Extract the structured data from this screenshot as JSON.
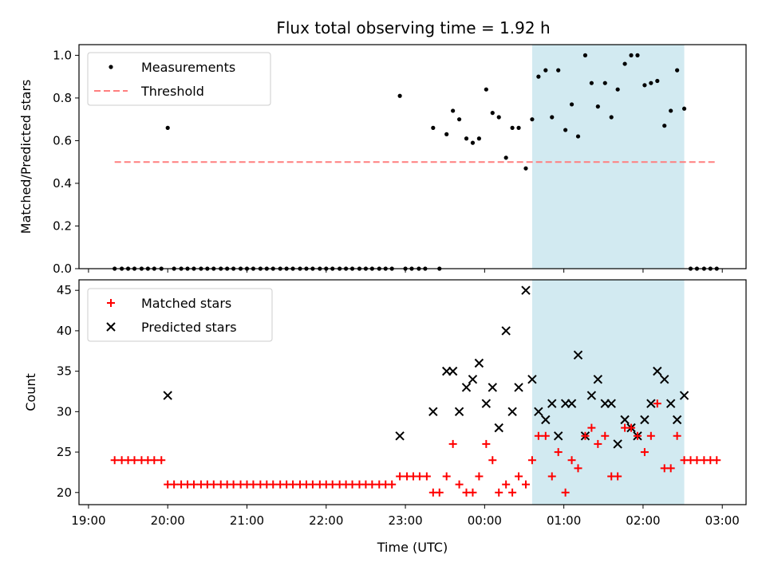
{
  "chart_data": {
    "title": "Flux total observing time = 1.92 h",
    "xlabel": "Time (UTC)",
    "x_unit": "hours (UTC, continuing past midnight)",
    "xlim": [
      18.88,
      27.3
    ],
    "xticks": [
      {
        "v": 19,
        "label": "19:00"
      },
      {
        "v": 20,
        "label": "20:00"
      },
      {
        "v": 21,
        "label": "21:00"
      },
      {
        "v": 22,
        "label": "22:00"
      },
      {
        "v": 23,
        "label": "23:00"
      },
      {
        "v": 24,
        "label": "00:00"
      },
      {
        "v": 25,
        "label": "01:00"
      },
      {
        "v": 26,
        "label": "02:00"
      },
      {
        "v": 27,
        "label": "03:00"
      }
    ],
    "highlight_span": {
      "x0": 24.6,
      "x1": 26.52,
      "color": "#add8e6"
    },
    "top": {
      "type": "scatter",
      "ylabel": "Matched/Predicted stars",
      "ylim": [
        0,
        1.05
      ],
      "yticks": [
        {
          "v": 0,
          "label": "0.0"
        },
        {
          "v": 0.2,
          "label": "0.2"
        },
        {
          "v": 0.4,
          "label": "0.4"
        },
        {
          "v": 0.6,
          "label": "0.6"
        },
        {
          "v": 0.8,
          "label": "0.8"
        },
        {
          "v": 1.0,
          "label": "1.0"
        }
      ],
      "legend": {
        "placement": "upper-left",
        "measurements_label": "Measurements",
        "threshold_label": "Threshold"
      },
      "threshold": {
        "value": 0.5,
        "x0": 19.33,
        "x1": 26.92,
        "color": "#ff7f7f"
      },
      "measurements": {
        "color": "#000000",
        "points": [
          [
            19.33,
            0
          ],
          [
            19.42,
            0
          ],
          [
            19.5,
            0
          ],
          [
            19.58,
            0
          ],
          [
            19.67,
            0
          ],
          [
            19.75,
            0
          ],
          [
            19.83,
            0
          ],
          [
            19.92,
            0
          ],
          [
            20.0,
            0.66
          ],
          [
            20.08,
            0
          ],
          [
            20.17,
            0
          ],
          [
            20.25,
            0
          ],
          [
            20.33,
            0
          ],
          [
            20.42,
            0
          ],
          [
            20.5,
            0
          ],
          [
            20.58,
            0
          ],
          [
            20.67,
            0
          ],
          [
            20.75,
            0
          ],
          [
            20.83,
            0
          ],
          [
            20.92,
            0
          ],
          [
            21.0,
            0
          ],
          [
            21.08,
            0
          ],
          [
            21.17,
            0
          ],
          [
            21.25,
            0
          ],
          [
            21.33,
            0
          ],
          [
            21.42,
            0
          ],
          [
            21.5,
            0
          ],
          [
            21.58,
            0
          ],
          [
            21.67,
            0
          ],
          [
            21.75,
            0
          ],
          [
            21.83,
            0
          ],
          [
            21.92,
            0
          ],
          [
            22.0,
            0
          ],
          [
            22.08,
            0
          ],
          [
            22.17,
            0
          ],
          [
            22.25,
            0
          ],
          [
            22.33,
            0
          ],
          [
            22.42,
            0
          ],
          [
            22.5,
            0
          ],
          [
            22.58,
            0
          ],
          [
            22.67,
            0
          ],
          [
            22.75,
            0
          ],
          [
            22.83,
            0
          ],
          [
            22.93,
            0.81
          ],
          [
            23.0,
            0
          ],
          [
            23.08,
            0
          ],
          [
            23.17,
            0
          ],
          [
            23.25,
            0
          ],
          [
            23.35,
            0.66
          ],
          [
            23.43,
            0
          ],
          [
            23.52,
            0.63
          ],
          [
            23.6,
            0.74
          ],
          [
            23.68,
            0.7
          ],
          [
            23.77,
            0.61
          ],
          [
            23.85,
            0.59
          ],
          [
            23.93,
            0.61
          ],
          [
            24.02,
            0.84
          ],
          [
            24.1,
            0.73
          ],
          [
            24.18,
            0.71
          ],
          [
            24.27,
            0.52
          ],
          [
            24.35,
            0.66
          ],
          [
            24.43,
            0.66
          ],
          [
            24.52,
            0.47
          ],
          [
            24.6,
            0.7
          ],
          [
            24.68,
            0.9
          ],
          [
            24.77,
            0.93
          ],
          [
            24.85,
            0.71
          ],
          [
            24.93,
            0.93
          ],
          [
            25.02,
            0.65
          ],
          [
            25.1,
            0.77
          ],
          [
            25.18,
            0.62
          ],
          [
            25.27,
            1.0
          ],
          [
            25.35,
            0.87
          ],
          [
            25.43,
            0.76
          ],
          [
            25.52,
            0.87
          ],
          [
            25.6,
            0.71
          ],
          [
            25.68,
            0.84
          ],
          [
            25.77,
            0.96
          ],
          [
            25.85,
            1.0
          ],
          [
            25.93,
            1.0
          ],
          [
            26.02,
            0.86
          ],
          [
            26.1,
            0.87
          ],
          [
            26.18,
            0.88
          ],
          [
            26.27,
            0.67
          ],
          [
            26.35,
            0.74
          ],
          [
            26.43,
            0.93
          ],
          [
            26.52,
            0.75
          ],
          [
            26.6,
            0
          ],
          [
            26.68,
            0
          ],
          [
            26.77,
            0
          ],
          [
            26.85,
            0
          ],
          [
            26.93,
            0
          ]
        ]
      }
    },
    "bottom": {
      "type": "scatter",
      "ylabel": "Count",
      "ylim": [
        18.5,
        46.3
      ],
      "yticks": [
        {
          "v": 20,
          "label": "20"
        },
        {
          "v": 25,
          "label": "25"
        },
        {
          "v": 30,
          "label": "30"
        },
        {
          "v": 35,
          "label": "35"
        },
        {
          "v": 40,
          "label": "40"
        },
        {
          "v": 45,
          "label": "45"
        }
      ],
      "legend": {
        "placement": "upper-left"
      },
      "series": [
        {
          "name": "Matched stars",
          "marker": "+",
          "color": "#ff0000",
          "points": [
            [
              19.33,
              24
            ],
            [
              19.42,
              24
            ],
            [
              19.5,
              24
            ],
            [
              19.58,
              24
            ],
            [
              19.67,
              24
            ],
            [
              19.75,
              24
            ],
            [
              19.83,
              24
            ],
            [
              19.92,
              24
            ],
            [
              20.0,
              21
            ],
            [
              20.08,
              21
            ],
            [
              20.17,
              21
            ],
            [
              20.25,
              21
            ],
            [
              20.33,
              21
            ],
            [
              20.42,
              21
            ],
            [
              20.5,
              21
            ],
            [
              20.58,
              21
            ],
            [
              20.67,
              21
            ],
            [
              20.75,
              21
            ],
            [
              20.83,
              21
            ],
            [
              20.92,
              21
            ],
            [
              21.0,
              21
            ],
            [
              21.08,
              21
            ],
            [
              21.17,
              21
            ],
            [
              21.25,
              21
            ],
            [
              21.33,
              21
            ],
            [
              21.42,
              21
            ],
            [
              21.5,
              21
            ],
            [
              21.58,
              21
            ],
            [
              21.67,
              21
            ],
            [
              21.75,
              21
            ],
            [
              21.83,
              21
            ],
            [
              21.92,
              21
            ],
            [
              22.0,
              21
            ],
            [
              22.08,
              21
            ],
            [
              22.17,
              21
            ],
            [
              22.25,
              21
            ],
            [
              22.33,
              21
            ],
            [
              22.42,
              21
            ],
            [
              22.5,
              21
            ],
            [
              22.58,
              21
            ],
            [
              22.67,
              21
            ],
            [
              22.75,
              21
            ],
            [
              22.83,
              21
            ],
            [
              22.93,
              22
            ],
            [
              23.02,
              22
            ],
            [
              23.1,
              22
            ],
            [
              23.18,
              22
            ],
            [
              23.27,
              22
            ],
            [
              23.35,
              20
            ],
            [
              23.43,
              20
            ],
            [
              23.52,
              22
            ],
            [
              23.6,
              26
            ],
            [
              23.68,
              21
            ],
            [
              23.77,
              20
            ],
            [
              23.85,
              20
            ],
            [
              23.93,
              22
            ],
            [
              24.02,
              26
            ],
            [
              24.1,
              24
            ],
            [
              24.18,
              20
            ],
            [
              24.27,
              21
            ],
            [
              24.35,
              20
            ],
            [
              24.43,
              22
            ],
            [
              24.52,
              21
            ],
            [
              24.6,
              24
            ],
            [
              24.68,
              27
            ],
            [
              24.77,
              27
            ],
            [
              24.85,
              22
            ],
            [
              24.93,
              25
            ],
            [
              25.02,
              20
            ],
            [
              25.1,
              24
            ],
            [
              25.18,
              23
            ],
            [
              25.27,
              27
            ],
            [
              25.35,
              28
            ],
            [
              25.43,
              26
            ],
            [
              25.52,
              27
            ],
            [
              25.6,
              22
            ],
            [
              25.68,
              22
            ],
            [
              25.77,
              28
            ],
            [
              25.85,
              28
            ],
            [
              25.93,
              27
            ],
            [
              26.02,
              25
            ],
            [
              26.1,
              27
            ],
            [
              26.18,
              31
            ],
            [
              26.27,
              23
            ],
            [
              26.35,
              23
            ],
            [
              26.43,
              27
            ],
            [
              26.52,
              24
            ],
            [
              26.6,
              24
            ],
            [
              26.68,
              24
            ],
            [
              26.77,
              24
            ],
            [
              26.85,
              24
            ],
            [
              26.93,
              24
            ]
          ]
        },
        {
          "name": "Predicted stars",
          "marker": "x",
          "color": "#000000",
          "points": [
            [
              20.0,
              32
            ],
            [
              22.93,
              27
            ],
            [
              23.35,
              30
            ],
            [
              23.52,
              35
            ],
            [
              23.6,
              35
            ],
            [
              23.68,
              30
            ],
            [
              23.77,
              33
            ],
            [
              23.85,
              34
            ],
            [
              23.93,
              36
            ],
            [
              24.02,
              31
            ],
            [
              24.1,
              33
            ],
            [
              24.18,
              28
            ],
            [
              24.27,
              40
            ],
            [
              24.35,
              30
            ],
            [
              24.43,
              33
            ],
            [
              24.52,
              45
            ],
            [
              24.6,
              34
            ],
            [
              24.68,
              30
            ],
            [
              24.77,
              29
            ],
            [
              24.85,
              31
            ],
            [
              24.93,
              27
            ],
            [
              25.02,
              31
            ],
            [
              25.1,
              31
            ],
            [
              25.18,
              37
            ],
            [
              25.27,
              27
            ],
            [
              25.35,
              32
            ],
            [
              25.43,
              34
            ],
            [
              25.52,
              31
            ],
            [
              25.6,
              31
            ],
            [
              25.68,
              26
            ],
            [
              25.77,
              29
            ],
            [
              25.85,
              28
            ],
            [
              25.93,
              27
            ],
            [
              26.02,
              29
            ],
            [
              26.1,
              31
            ],
            [
              26.18,
              35
            ],
            [
              26.27,
              34
            ],
            [
              26.35,
              31
            ],
            [
              26.43,
              29
            ],
            [
              26.52,
              32
            ]
          ]
        }
      ]
    }
  }
}
